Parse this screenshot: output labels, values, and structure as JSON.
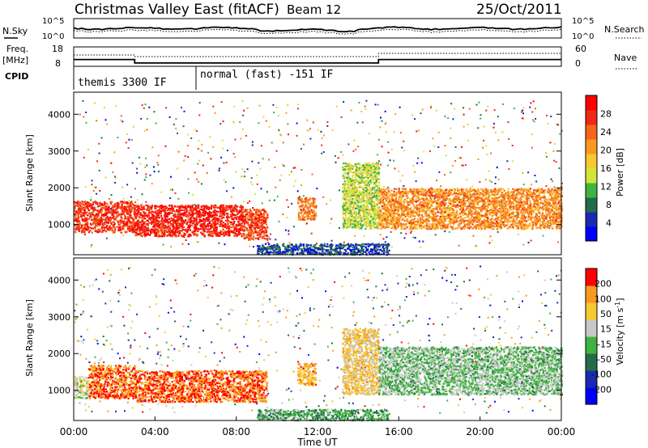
{
  "header": {
    "title": "Christmas Valley East (fitACF)",
    "beam": "Beam 12",
    "date": "25/Oct/2011"
  },
  "noise_panel": {
    "left_label": "N.Sky",
    "left_ticks": [
      "10^5",
      "10^0"
    ],
    "right_label": "N.Search",
    "right_ticks": [
      "10^5",
      "10^0"
    ]
  },
  "freq_panel": {
    "left_label": "Freq.",
    "left_unit": "[MHz]",
    "left_ticks": [
      "18",
      "8"
    ],
    "right_label": "Nave",
    "right_ticks": [
      "60",
      "0"
    ]
  },
  "cpid_panel": {
    "label": "CPID",
    "modes": [
      "themis 3300 IF",
      "normal (fast) -151 IF"
    ]
  },
  "x_axis": {
    "label": "Time UT",
    "ticks": [
      "00:00",
      "04:00",
      "08:00",
      "12:00",
      "16:00",
      "20:00",
      "00:00"
    ]
  },
  "chart_data": [
    {
      "type": "heatmap",
      "panel": "power",
      "ylabel": "Slant Range [km]",
      "yticks": [
        1000,
        2000,
        3000,
        4000
      ],
      "ylim": [
        180,
        4600
      ],
      "xlim_hours": [
        0,
        24
      ],
      "colorbar_label": "Power [dB]",
      "colorbar_ticks": [
        "28",
        "24",
        "20",
        "16",
        "12",
        "8",
        "4"
      ],
      "colorbar_colors": [
        "#0000ff",
        "#1a2ab0",
        "#226c4a",
        "#3fb33f",
        "#cfe63c",
        "#f7c82f",
        "#f99a1f",
        "#f5661a",
        "#ee2a14",
        "#ff0000"
      ],
      "regions": [
        {
          "t0": 0.0,
          "t1": 3.0,
          "r0": 800,
          "r1": 1650,
          "level": 0.88
        },
        {
          "t0": 3.0,
          "t1": 8.3,
          "r0": 700,
          "r1": 1550,
          "level": 0.94
        },
        {
          "t0": 8.3,
          "t1": 9.5,
          "r0": 600,
          "r1": 1450,
          "level": 0.85
        },
        {
          "t0": 11.0,
          "t1": 11.9,
          "r0": 1150,
          "r1": 1750,
          "level": 0.75
        },
        {
          "t0": 13.2,
          "t1": 15.0,
          "r0": 900,
          "r1": 2700,
          "level": 0.45
        },
        {
          "t0": 15.0,
          "t1": 24.0,
          "r0": 900,
          "r1": 2000,
          "level": 0.7
        },
        {
          "t0": 9.0,
          "t1": 15.5,
          "r0": 200,
          "r1": 500,
          "level": 0.15
        }
      ]
    },
    {
      "type": "heatmap",
      "panel": "velocity",
      "ylabel": "Slant Range [km]",
      "yticks": [
        1000,
        2000,
        3000,
        4000
      ],
      "ylim": [
        180,
        4600
      ],
      "xlim_hours": [
        0,
        24
      ],
      "colorbar_label": "Velocity [m s^-1]",
      "colorbar_ticks": [
        "200",
        "100",
        "50",
        "15",
        "-15",
        "-50",
        "-100",
        "-200"
      ],
      "colorbar_colors": [
        "#0000ff",
        "#1a2ab0",
        "#226c4a",
        "#3fb33f",
        "#c8c8c8",
        "#f7c82f",
        "#f99a1f",
        "#ff0000"
      ],
      "regions": [
        {
          "t0": 0.0,
          "t1": 0.7,
          "r0": 800,
          "r1": 1400,
          "level": 0.6
        },
        {
          "t0": 0.7,
          "t1": 3.0,
          "r0": 800,
          "r1": 1700,
          "level": 0.9
        },
        {
          "t0": 3.0,
          "t1": 9.5,
          "r0": 700,
          "r1": 1550,
          "level": 0.92
        },
        {
          "t0": 11.0,
          "t1": 11.9,
          "r0": 1150,
          "r1": 1750,
          "level": 0.8
        },
        {
          "t0": 13.2,
          "t1": 15.0,
          "r0": 900,
          "r1": 2700,
          "level": 0.7
        },
        {
          "t0": 15.0,
          "t1": 24.0,
          "r0": 900,
          "r1": 2200,
          "level": 0.48
        },
        {
          "t0": 9.0,
          "t1": 15.5,
          "r0": 200,
          "r1": 500,
          "level": 0.4
        }
      ]
    }
  ]
}
